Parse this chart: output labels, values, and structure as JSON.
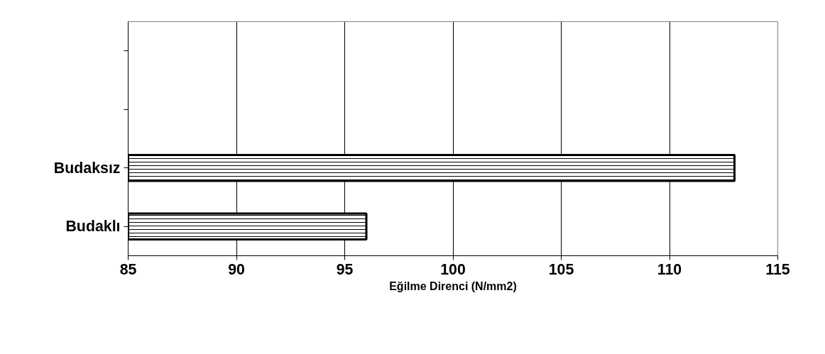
{
  "chart_data": {
    "type": "bar",
    "orientation": "horizontal",
    "categories": [
      null,
      null,
      "Budaksız",
      "Budaklı"
    ],
    "values": [
      null,
      null,
      113,
      96
    ],
    "color": "#000000",
    "xlabel": "Eğilme Direnci (N/mm2)",
    "xlim": [
      85,
      115
    ],
    "xticks": [
      85,
      90,
      95,
      100,
      105,
      110,
      115
    ],
    "grid": "x"
  }
}
